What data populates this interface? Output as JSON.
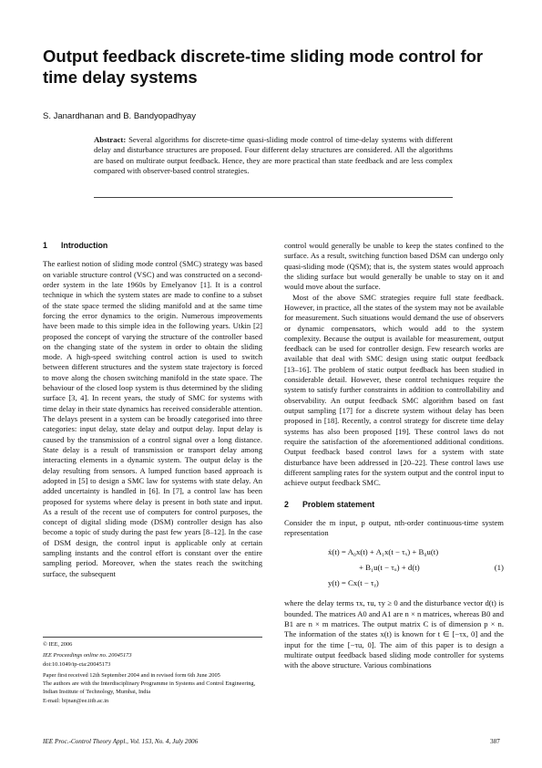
{
  "header": {
    "title": "Output feedback discrete-time sliding mode control for time delay systems",
    "authors": "S. Janardhanan and B. Bandyopadhyay",
    "abstract_label": "Abstract:",
    "abstract": "Several algorithms for discrete-time quasi-sliding mode control of time-delay systems with different delay and disturbance structures are proposed. Four different delay structures are considered. All the algorithms are based on multirate output feedback. Hence, they are more practical than state feedback and are less complex compared with observer-based control strategies."
  },
  "left_column": {
    "section_number": "1",
    "section_title": "Introduction",
    "paragraphs": [
      "The earliest notion of sliding mode control (SMC) strategy was based on variable structure control (VSC) and was constructed on a second-order system in the late 1960s by Emelyanov [1]. It is a control technique in which the system states are made to confine to a subset of the state space termed the sliding manifold and at the same time forcing the error dynamics to the origin. Numerous improvements have been made to this simple idea in the following years. Utkin [2] proposed the concept of varying the structure of the controller based on the changing state of the system in order to obtain the sliding mode. A high-speed switching control action is used to switch between different structures and the system state trajectory is forced to move along the chosen switching manifold in the state space. The behaviour of the closed loop system is thus determined by the sliding surface [3, 4]. In recent years, the study of SMC for systems with time delay in their state dynamics has received considerable attention. The delays present in a system can be broadly categorised into three categories: input delay, state delay and output delay. Input delay is caused by the transmission of a control signal over a long distance. State delay is a result of transmission or transport delay among interacting elements in a dynamic system. The output delay is the delay resulting from sensors. A lumped function based approach is adopted in [5] to design a SMC law for systems with state delay. An added uncertainty is handled in [6]. In [7], a control law has been proposed for systems where delay is present in both state and input. As a result of the recent use of computers for control purposes, the concept of digital sliding mode (DSM) controller design has also become a topic of study during the past few years [8–12]. In the case of DSM design, the control input is applicable only at certain sampling instants and the control effort is constant over the entire sampling period. Moreover, when the states reach the switching surface, the subsequent"
    ],
    "footnotes": [
      "© IEE, 2006",
      "IEE Proceedings online no. 20045173",
      "doi:10.1049/ip-cta:20045173",
      "Paper first received 12th September 2004 and in revised form 6th June 2005",
      "The authors are with the Interdisciplinary Programme in Systems and Control Engineering, Indian Institute of Technology, Mumbai, India",
      "E-mail: bijnan@ee.iitb.ac.in"
    ]
  },
  "right_column": {
    "paragraphs": [
      "control would generally be unable to keep the states confined to the surface. As a result, switching function based DSM can undergo only quasi-sliding mode (QSM); that is, the system states would approach the sliding surface but would generally be unable to stay on it and would move about the surface.",
      "Most of the above SMC strategies require full state feedback. However, in practice, all the states of the system may not be available for measurement. Such situations would demand the use of observers or dynamic compensators, which would add to the system complexity. Because the output is available for measurement, output feedback can be used for controller design. Few research works are available that deal with SMC design using static output feedback [13–16]. The problem of static output feedback has been studied in considerable detail. However, these control techniques require the system to satisfy further constraints in addition to controllability and observability. An output feedback SMC algorithm based on fast output sampling [17] for a discrete system without delay has been proposed in [18]. Recently, a control strategy for discrete time delay systems has also been proposed [19]. These control laws do not require the satisfaction of the aforementioned additional conditions. Output feedback based control laws for a system with state disturbance have been addressed in [20–22]. These control laws use different sampling rates for the system output and the control input to achieve output feedback SMC."
    ],
    "section_number": "2",
    "section_title": "Problem statement",
    "section_paragraphs": [
      "Consider the m input, p output, nth-order continuous-time system representation",
      "where the delay terms τx, τu, τy ≥ 0 and the disturbance vector d(t) is bounded. The matrices A0 and A1 are n × n matrices, whereas B0 and B1 are n × m matrices. The output matrix C is of dimension p × n. The information of the states x(t) is known for t ∈ [−τx, 0] and the input for the time [−τu, 0]. The aim of this paper is to design a multirate output feedback based sliding mode controller for systems with the above structure. Various combinations"
    ],
    "equation": {
      "lines": [
        "ẋ(t) = A₀x(t) + A₁x(t − τₓ) + B₀u(t)",
        "+ B₁u(t − τᵤ) + d(t)",
        "y(t) = Cx(t − τᵧ)"
      ],
      "number": "(1)"
    }
  },
  "footer": {
    "journal": "IEE Proc.-Control Theory Appl., Vol. 153, No. 4, July 2006",
    "page": "387"
  }
}
